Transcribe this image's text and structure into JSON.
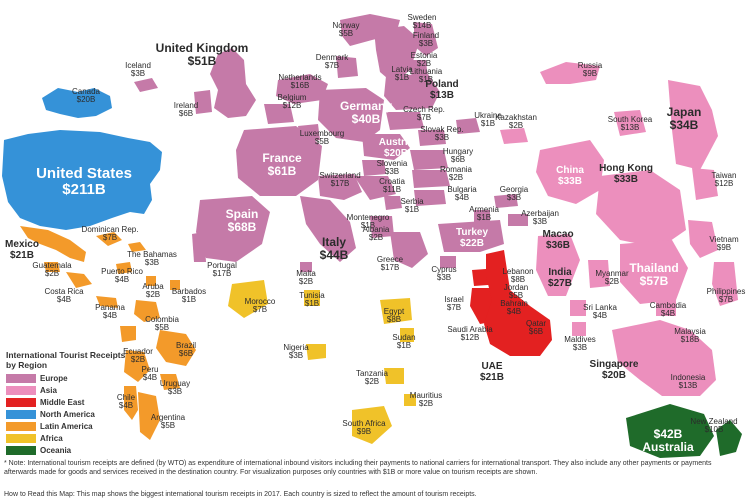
{
  "colors": {
    "europe": "#c57aa8",
    "asia": "#ec8fbd",
    "middle_east": "#e32121",
    "north_america": "#3592d8",
    "latin_america": "#f39a2a",
    "africa": "#f0c229",
    "oceania": "#1f6b2a"
  },
  "legend": {
    "title": "International Tourist Receipts by Region",
    "items": [
      {
        "label": "Europe",
        "color": "#c57aa8"
      },
      {
        "label": "Asia",
        "color": "#ec8fbd"
      },
      {
        "label": "Middle East",
        "color": "#e32121"
      },
      {
        "label": "North America",
        "color": "#3592d8"
      },
      {
        "label": "Latin America",
        "color": "#f39a2a"
      },
      {
        "label": "Africa",
        "color": "#f0c229"
      },
      {
        "label": "Oceania",
        "color": "#1f6b2a"
      }
    ]
  },
  "countries": [
    {
      "name": "United States",
      "value": "$211B",
      "region": "north_america"
    },
    {
      "name": "Canada",
      "value": "$20B",
      "region": "north_america"
    },
    {
      "name": "Mexico",
      "value": "$21B",
      "region": "latin_america"
    },
    {
      "name": "Dominican Rep.",
      "value": "$7B",
      "region": "latin_america"
    },
    {
      "name": "The Bahamas",
      "value": "$3B",
      "region": "latin_america"
    },
    {
      "name": "Puerto Rico",
      "value": "$4B",
      "region": "latin_america"
    },
    {
      "name": "Guatemala",
      "value": "$2B",
      "region": "latin_america"
    },
    {
      "name": "Costa Rica",
      "value": "$4B",
      "region": "latin_america"
    },
    {
      "name": "Aruba",
      "value": "$2B",
      "region": "latin_america"
    },
    {
      "name": "Barbados",
      "value": "$1B",
      "region": "latin_america"
    },
    {
      "name": "Panama",
      "value": "$4B",
      "region": "latin_america"
    },
    {
      "name": "Colombia",
      "value": "$5B",
      "region": "latin_america"
    },
    {
      "name": "Ecuador",
      "value": "$2B",
      "region": "latin_america"
    },
    {
      "name": "Brazil",
      "value": "$6B",
      "region": "latin_america"
    },
    {
      "name": "Peru",
      "value": "$4B",
      "region": "latin_america"
    },
    {
      "name": "Uruguay",
      "value": "$3B",
      "region": "latin_america"
    },
    {
      "name": "Chile",
      "value": "$4B",
      "region": "latin_america"
    },
    {
      "name": "Argentina",
      "value": "$5B",
      "region": "latin_america"
    },
    {
      "name": "Iceland",
      "value": "$3B",
      "region": "europe"
    },
    {
      "name": "United Kingdom",
      "value": "$51B",
      "region": "europe"
    },
    {
      "name": "Ireland",
      "value": "$6B",
      "region": "europe"
    },
    {
      "name": "Norway",
      "value": "$5B",
      "region": "europe"
    },
    {
      "name": "Sweden",
      "value": "$14B",
      "region": "europe"
    },
    {
      "name": "Finland",
      "value": "$3B",
      "region": "europe"
    },
    {
      "name": "Denmark",
      "value": "$7B",
      "region": "europe"
    },
    {
      "name": "Estonia",
      "value": "$2B",
      "region": "europe"
    },
    {
      "name": "Latvia",
      "value": "$1B",
      "region": "europe"
    },
    {
      "name": "Lithuania",
      "value": "$1B",
      "region": "europe"
    },
    {
      "name": "Netherlands",
      "value": "$16B",
      "region": "europe"
    },
    {
      "name": "Poland",
      "value": "$13B",
      "region": "europe"
    },
    {
      "name": "Belgium",
      "value": "$12B",
      "region": "europe"
    },
    {
      "name": "Germany",
      "value": "$40B",
      "region": "europe"
    },
    {
      "name": "Czech Rep.",
      "value": "$7B",
      "region": "europe"
    },
    {
      "name": "Luxembourg",
      "value": "$5B",
      "region": "europe"
    },
    {
      "name": "Austria",
      "value": "$20B",
      "region": "europe"
    },
    {
      "name": "Slovak Rep.",
      "value": "$3B",
      "region": "europe"
    },
    {
      "name": "Ukraine",
      "value": "$1B",
      "region": "europe"
    },
    {
      "name": "Hungary",
      "value": "$6B",
      "region": "europe"
    },
    {
      "name": "France",
      "value": "$61B",
      "region": "europe"
    },
    {
      "name": "Switzerland",
      "value": "$17B",
      "region": "europe"
    },
    {
      "name": "Slovenia",
      "value": "$3B",
      "region": "europe"
    },
    {
      "name": "Croatia",
      "value": "$11B",
      "region": "europe"
    },
    {
      "name": "Romania",
      "value": "$2B",
      "region": "europe"
    },
    {
      "name": "Bulgaria",
      "value": "$4B",
      "region": "europe"
    },
    {
      "name": "Serbia",
      "value": "$1B",
      "region": "europe"
    },
    {
      "name": "Montenegro",
      "value": "$1B",
      "region": "europe"
    },
    {
      "name": "Albania",
      "value": "$2B",
      "region": "europe"
    },
    {
      "name": "Spain",
      "value": "$68B",
      "region": "europe"
    },
    {
      "name": "Portugal",
      "value": "$17B",
      "region": "europe"
    },
    {
      "name": "Italy",
      "value": "$44B",
      "region": "europe"
    },
    {
      "name": "Malta",
      "value": "$2B",
      "region": "europe"
    },
    {
      "name": "Greece",
      "value": "$17B",
      "region": "europe"
    },
    {
      "name": "Cyprus",
      "value": "$3B",
      "region": "europe"
    },
    {
      "name": "Turkey",
      "value": "$22B",
      "region": "europe"
    },
    {
      "name": "Georgia",
      "value": "$3B",
      "region": "europe"
    },
    {
      "name": "Armenia",
      "value": "$1B",
      "region": "europe"
    },
    {
      "name": "Azerbaijan",
      "value": "$3B",
      "region": "europe"
    },
    {
      "name": "Kazakhstan",
      "value": "$2B",
      "region": "asia"
    },
    {
      "name": "Russia",
      "value": "$9B",
      "region": "europe"
    },
    {
      "name": "Lebanon",
      "value": "$8B",
      "region": "middle_east"
    },
    {
      "name": "Jordan",
      "value": "$5B",
      "region": "middle_east"
    },
    {
      "name": "Israel",
      "value": "$7B",
      "region": "middle_east"
    },
    {
      "name": "Bahrain",
      "value": "$4B",
      "region": "middle_east"
    },
    {
      "name": "Qatar",
      "value": "$6B",
      "region": "middle_east"
    },
    {
      "name": "Saudi Arabia",
      "value": "$12B",
      "region": "middle_east"
    },
    {
      "name": "UAE",
      "value": "$21B",
      "region": "middle_east"
    },
    {
      "name": "Egypt",
      "value": "$8B",
      "region": "africa"
    },
    {
      "name": "Sudan",
      "value": "$1B",
      "region": "africa"
    },
    {
      "name": "Morocco",
      "value": "$7B",
      "region": "africa"
    },
    {
      "name": "Tunisia",
      "value": "$1B",
      "region": "africa"
    },
    {
      "name": "Nigeria",
      "value": "$3B",
      "region": "africa"
    },
    {
      "name": "Tanzania",
      "value": "$2B",
      "region": "africa"
    },
    {
      "name": "Mauritius",
      "value": "$2B",
      "region": "africa"
    },
    {
      "name": "South Africa",
      "value": "$9B",
      "region": "africa"
    },
    {
      "name": "China",
      "value": "$33B",
      "region": "asia"
    },
    {
      "name": "Japan",
      "value": "$34B",
      "region": "asia"
    },
    {
      "name": "South Korea",
      "value": "$13B",
      "region": "asia"
    },
    {
      "name": "Hong Kong",
      "value": "$33B",
      "region": "asia"
    },
    {
      "name": "Taiwan",
      "value": "$12B",
      "region": "asia"
    },
    {
      "name": "Macao",
      "value": "$36B",
      "region": "asia"
    },
    {
      "name": "India",
      "value": "$27B",
      "region": "asia"
    },
    {
      "name": "Myanmar",
      "value": "$2B",
      "region": "asia"
    },
    {
      "name": "Thailand",
      "value": "$57B",
      "region": "asia"
    },
    {
      "name": "Vietnam",
      "value": "$9B",
      "region": "asia"
    },
    {
      "name": "Philippines",
      "value": "$7B",
      "region": "asia"
    },
    {
      "name": "Sri Lanka",
      "value": "$4B",
      "region": "asia"
    },
    {
      "name": "Maldives",
      "value": "$3B",
      "region": "asia"
    },
    {
      "name": "Cambodia",
      "value": "$4B",
      "region": "asia"
    },
    {
      "name": "Malaysia",
      "value": "$18B",
      "region": "asia"
    },
    {
      "name": "Singapore",
      "value": "$20B",
      "region": "asia"
    },
    {
      "name": "Indonesia",
      "value": "$13B",
      "region": "asia"
    },
    {
      "name": "Australia",
      "value": "$42B",
      "region": "oceania"
    },
    {
      "name": "New Zealand",
      "value": "$10B",
      "region": "oceania"
    }
  ],
  "footnote": "* Note: International tourism receipts are defined (by WTO) as expenditure of international inbound visitors including their payments to national carriers for international transport. They also include any other payments or payments afterwards made for goods and services received in the destination country. For visualization purposes only countries with $1B or more value on tourism receipts are shown.",
  "how_to_read": "How to Read this Map: This map shows the biggest international tourism receipts in 2017. Each country is sized to reflect the amount of tourism receipts."
}
